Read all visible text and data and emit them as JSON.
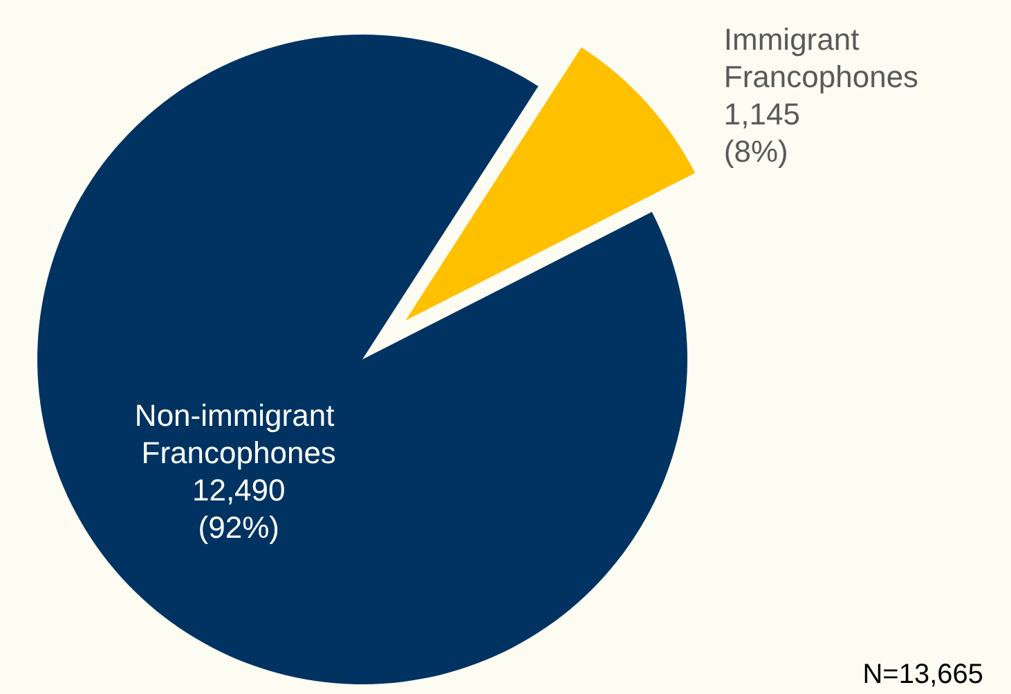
{
  "chart_data": {
    "type": "pie",
    "categories": [
      "Non-immigrant Francophones",
      "Immigrant Francophones"
    ],
    "values": [
      12490,
      1145
    ],
    "colors": [
      "#003361",
      "#ffc000"
    ],
    "value_labels": [
      "12,490\n(92%)",
      "1,145\n(8%)"
    ],
    "annotations": [
      "N=13,665"
    ],
    "legend": false
  }
}
